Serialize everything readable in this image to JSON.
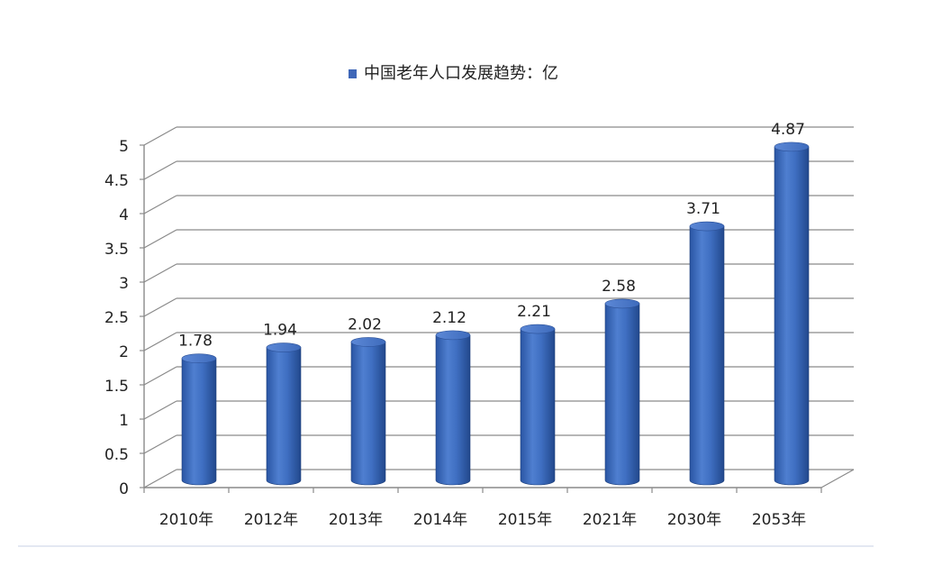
{
  "chart_data": {
    "type": "bar",
    "title": "",
    "legend": {
      "label": "中国老年人口发展趋势：亿",
      "position": "top",
      "color": "#3f67b8"
    },
    "categories": [
      "2010年",
      "2012年",
      "2013年",
      "2014年",
      "2015年",
      "2021年",
      "2030年",
      "2053年"
    ],
    "series": [
      {
        "name": "中国老年人口发展趋势：亿",
        "values": [
          1.78,
          1.94,
          2.02,
          2.12,
          2.21,
          2.58,
          3.71,
          4.87
        ]
      }
    ],
    "data_labels": [
      "1.78",
      "1.94",
      "2.02",
      "2.12",
      "2.21",
      "2.58",
      "3.71",
      "4.87"
    ],
    "ylim": [
      0,
      5
    ],
    "yticks": [
      "0",
      "0.5",
      "1",
      "1.5",
      "2",
      "2.5",
      "3",
      "3.5",
      "4",
      "4.5",
      "5"
    ],
    "grid": true,
    "three_d": true,
    "xlabel": "",
    "ylabel": "",
    "colors": {
      "bar_main": "#3f6fc2",
      "bar_light": "#6f9ae0",
      "bar_dark": "#234a8f",
      "grid": "#8a8a8a",
      "axis_text": "#222222"
    }
  }
}
